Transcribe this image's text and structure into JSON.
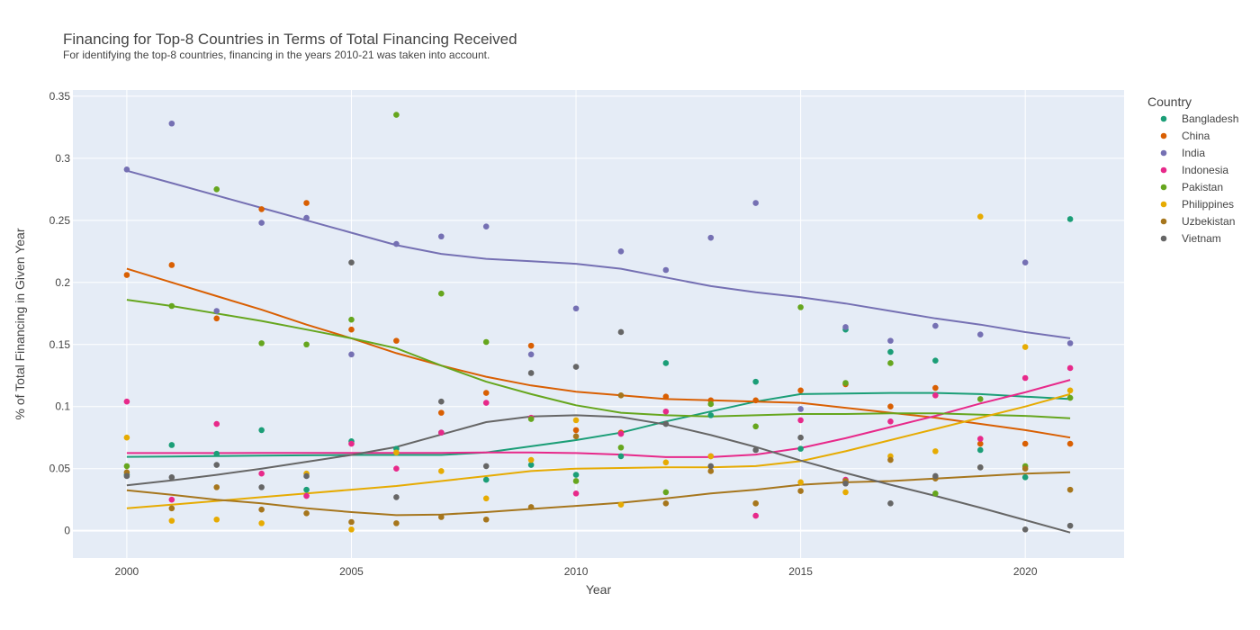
{
  "chart_data": {
    "type": "scatter",
    "title": "Financing for Top-8 Countries in Terms of Total Financing Received",
    "subtitle": "For identifying the top-8 countries, financing in the years 2010-21 was taken into account.",
    "xlabel": "Year",
    "ylabel": "% of Total Financing in Given Year",
    "xlim": [
      1998.8,
      2022.2
    ],
    "ylim": [
      -0.022,
      0.355
    ],
    "xticks": [
      2000,
      2005,
      2010,
      2015,
      2020
    ],
    "yticks": [
      0,
      0.05,
      0.1,
      0.15,
      0.2,
      0.25,
      0.3,
      0.35
    ],
    "ytick_labels": [
      "0",
      "0.05",
      "0.1",
      "0.15",
      "0.2",
      "0.25",
      "0.3",
      "0.35"
    ],
    "grid": true,
    "legend_title": "Country",
    "legend_position": "right",
    "x": [
      2000,
      2001,
      2002,
      2003,
      2004,
      2005,
      2006,
      2007,
      2008,
      2009,
      2010,
      2011,
      2012,
      2013,
      2014,
      2015,
      2016,
      2017,
      2018,
      2019,
      2020,
      2021
    ],
    "series": [
      {
        "name": "Bangladesh",
        "color": "#1b9e77",
        "values": [
          0.045,
          0.069,
          0.062,
          0.081,
          0.033,
          0.072,
          0.066,
          0.079,
          0.041,
          0.053,
          0.045,
          0.06,
          0.135,
          0.093,
          0.12,
          0.066,
          0.162,
          0.144,
          0.137,
          0.065,
          0.043,
          0.251
        ],
        "trend": [
          0.0595,
          0.0598,
          0.0601,
          0.0604,
          0.0607,
          0.061,
          0.061,
          0.061,
          0.063,
          0.068,
          0.073,
          0.079,
          0.088,
          0.096,
          0.104,
          0.11,
          0.1105,
          0.111,
          0.111,
          0.11,
          0.108,
          0.106
        ]
      },
      {
        "name": "China",
        "color": "#d95f02",
        "values": [
          0.206,
          0.214,
          0.171,
          0.259,
          0.264,
          0.162,
          0.153,
          0.095,
          0.111,
          0.149,
          0.081,
          0.079,
          0.108,
          0.105,
          0.105,
          0.113,
          0.118,
          0.1,
          0.115,
          0.07,
          0.07,
          0.07
        ],
        "trend": [
          0.211,
          0.2,
          0.189,
          0.178,
          0.166,
          0.155,
          0.143,
          0.133,
          0.124,
          0.117,
          0.112,
          0.109,
          0.106,
          0.105,
          0.104,
          0.103,
          0.099,
          0.095,
          0.091,
          0.086,
          0.081,
          0.075
        ]
      },
      {
        "name": "India",
        "color": "#7570b3",
        "values": [
          0.291,
          0.328,
          0.177,
          0.248,
          0.252,
          0.142,
          0.231,
          0.237,
          0.245,
          0.142,
          0.179,
          0.225,
          0.21,
          0.236,
          0.264,
          0.098,
          0.164,
          0.153,
          0.165,
          0.158,
          0.216,
          0.151
        ],
        "trend": [
          0.29,
          0.28,
          0.27,
          0.26,
          0.25,
          0.24,
          0.23,
          0.223,
          0.219,
          0.217,
          0.215,
          0.211,
          0.204,
          0.197,
          0.192,
          0.188,
          0.183,
          0.177,
          0.171,
          0.166,
          0.16,
          0.155
        ]
      },
      {
        "name": "Indonesia",
        "color": "#e7298a",
        "values": [
          0.104,
          0.025,
          0.086,
          0.046,
          0.028,
          0.07,
          0.05,
          0.079,
          0.103,
          0.091,
          0.03,
          0.078,
          0.096,
          0.06,
          0.012,
          0.089,
          0.041,
          0.088,
          0.109,
          0.074,
          0.123,
          0.131
        ],
        "trend": [
          0.0625,
          0.0625,
          0.0625,
          0.0627,
          0.0627,
          0.0627,
          0.0627,
          0.0627,
          0.063,
          0.063,
          0.0625,
          0.0613,
          0.0593,
          0.0593,
          0.0613,
          0.0665,
          0.0745,
          0.0835,
          0.0925,
          0.1025,
          0.1115,
          0.1215
        ]
      },
      {
        "name": "Pakistan",
        "color": "#66a61e",
        "values": [
          0.052,
          0.181,
          0.275,
          0.151,
          0.15,
          0.17,
          0.335,
          0.191,
          0.152,
          0.09,
          0.04,
          0.067,
          0.031,
          0.102,
          0.084,
          0.18,
          0.119,
          0.135,
          0.03,
          0.106,
          0.052,
          0.107
        ],
        "trend": [
          0.186,
          0.181,
          0.175,
          0.169,
          0.162,
          0.155,
          0.147,
          0.133,
          0.12,
          0.11,
          0.101,
          0.095,
          0.093,
          0.092,
          0.093,
          0.094,
          0.094,
          0.0945,
          0.0945,
          0.0935,
          0.0925,
          0.0905
        ]
      },
      {
        "name": "Philippines",
        "color": "#e6ab02",
        "values": [
          0.075,
          0.008,
          0.009,
          0.006,
          0.046,
          0.001,
          0.063,
          0.048,
          0.026,
          0.057,
          0.089,
          0.021,
          0.055,
          0.06,
          0.022,
          0.039,
          0.031,
          0.06,
          0.064,
          0.253,
          0.148,
          0.113
        ],
        "trend": [
          0.018,
          0.021,
          0.024,
          0.027,
          0.03,
          0.033,
          0.036,
          0.04,
          0.044,
          0.048,
          0.05,
          0.0505,
          0.051,
          0.051,
          0.052,
          0.056,
          0.064,
          0.073,
          0.082,
          0.091,
          0.1,
          0.11
        ]
      },
      {
        "name": "Uzbekistan",
        "color": "#a6761d",
        "values": [
          0.047,
          0.018,
          0.035,
          0.017,
          0.014,
          0.007,
          0.006,
          0.011,
          0.009,
          0.019,
          0.076,
          0.109,
          0.022,
          0.048,
          0.022,
          0.032,
          0.04,
          0.057,
          0.042,
          0.051,
          0.05,
          0.033
        ],
        "trend": [
          0.0325,
          0.029,
          0.025,
          0.022,
          0.018,
          0.015,
          0.0125,
          0.013,
          0.015,
          0.0175,
          0.02,
          0.0225,
          0.026,
          0.03,
          0.033,
          0.037,
          0.039,
          0.04,
          0.042,
          0.044,
          0.046,
          0.047
        ]
      },
      {
        "name": "Vietnam",
        "color": "#666666",
        "values": [
          0.044,
          0.043,
          0.053,
          0.035,
          0.044,
          0.216,
          0.027,
          0.104,
          0.052,
          0.127,
          0.132,
          0.16,
          0.086,
          0.052,
          0.065,
          0.075,
          0.038,
          0.022,
          0.044,
          0.051,
          0.001,
          0.004
        ],
        "trend": [
          0.0365,
          0.0405,
          0.045,
          0.05,
          0.0555,
          0.061,
          0.0675,
          0.0775,
          0.0875,
          0.092,
          0.093,
          0.0915,
          0.0855,
          0.077,
          0.0675,
          0.0565,
          0.0465,
          0.037,
          0.028,
          0.0185,
          0.0085,
          -0.0015
        ]
      }
    ]
  }
}
